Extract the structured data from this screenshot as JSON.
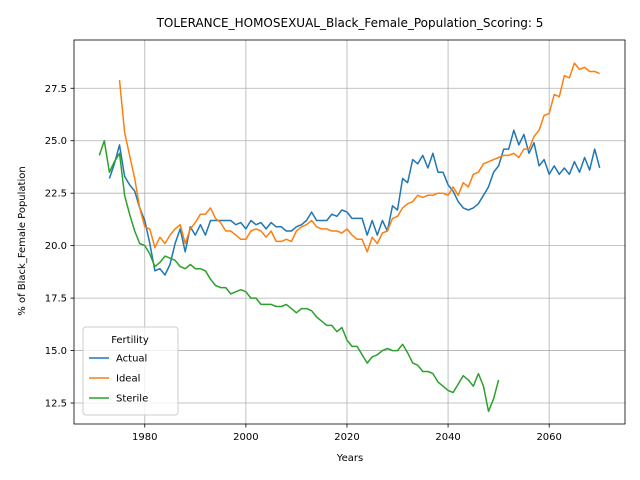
{
  "chart_data": {
    "type": "line",
    "title": "TOLERANCE_HOMOSEXUAL_Black_Female_Population_Scoring: 5",
    "xlabel": "Years",
    "ylabel": "% of Black_Female Population",
    "xlim": [
      1966,
      2075
    ],
    "ylim": [
      11.5,
      29.8
    ],
    "xticks": [
      1980,
      2000,
      2020,
      2040,
      2060
    ],
    "yticks": [
      12.5,
      15.0,
      17.5,
      20.0,
      22.5,
      25.0,
      27.5
    ],
    "grid": true,
    "legend": {
      "title": "Fertility",
      "placement": "lower-left"
    },
    "series": [
      {
        "name": "Actual",
        "color": "#1f77b4",
        "x": [
          1973,
          1974,
          1975,
          1976,
          1977,
          1978,
          1979,
          1980,
          1981,
          1982,
          1983,
          1984,
          1985,
          1986,
          1987,
          1988,
          1989,
          1990,
          1991,
          1992,
          1993,
          1994,
          1995,
          1996,
          1997,
          1998,
          1999,
          2000,
          2001,
          2002,
          2003,
          2004,
          2005,
          2006,
          2007,
          2008,
          2009,
          2010,
          2011,
          2012,
          2013,
          2014,
          2015,
          2016,
          2017,
          2018,
          2019,
          2020,
          2021,
          2022,
          2023,
          2024,
          2025,
          2026,
          2027,
          2028,
          2029,
          2030,
          2031,
          2032,
          2033,
          2034,
          2035,
          2036,
          2037,
          2038,
          2039,
          2040,
          2041,
          2042,
          2043,
          2044,
          2045,
          2046,
          2047,
          2048,
          2049,
          2050,
          2051,
          2052,
          2053,
          2054,
          2055,
          2056,
          2057,
          2058,
          2059,
          2060,
          2061,
          2062,
          2063,
          2064,
          2065,
          2066,
          2067,
          2068,
          2069,
          2070
        ],
        "values": [
          23.2,
          23.9,
          24.8,
          23.3,
          22.9,
          22.6,
          21.8,
          21.2,
          20.1,
          18.8,
          18.9,
          18.6,
          19.1,
          20.1,
          20.8,
          19.7,
          20.9,
          20.5,
          21.0,
          20.5,
          21.2,
          21.2,
          21.2,
          21.2,
          21.2,
          21.0,
          21.1,
          20.8,
          21.2,
          21.0,
          21.1,
          20.8,
          21.1,
          20.9,
          20.9,
          20.7,
          20.7,
          20.9,
          21.0,
          21.2,
          21.6,
          21.2,
          21.2,
          21.2,
          21.5,
          21.4,
          21.7,
          21.6,
          21.3,
          21.3,
          21.3,
          20.5,
          21.2,
          20.5,
          21.2,
          20.7,
          21.9,
          21.7,
          23.2,
          23.0,
          24.1,
          23.9,
          24.3,
          23.7,
          24.4,
          23.5,
          23.5,
          22.9,
          22.6,
          22.1,
          21.8,
          21.7,
          21.8,
          22.0,
          22.4,
          22.8,
          23.5,
          23.8,
          24.6,
          24.6,
          25.5,
          24.8,
          25.3,
          24.4,
          24.9,
          23.8,
          24.1,
          23.4,
          23.8,
          23.4,
          23.7,
          23.4,
          24.0,
          23.5,
          24.2,
          23.6,
          24.6,
          23.7
        ]
      },
      {
        "name": "Ideal",
        "color": "#ff7f0e",
        "x": [
          1975,
          1976,
          1977,
          1978,
          1979,
          1980,
          1981,
          1982,
          1983,
          1984,
          1985,
          1986,
          1987,
          1988,
          1989,
          1990,
          1991,
          1992,
          1993,
          1994,
          1995,
          1996,
          1997,
          1998,
          1999,
          2000,
          2001,
          2002,
          2003,
          2004,
          2005,
          2006,
          2007,
          2008,
          2009,
          2010,
          2011,
          2012,
          2013,
          2014,
          2015,
          2016,
          2017,
          2018,
          2019,
          2020,
          2021,
          2022,
          2023,
          2024,
          2025,
          2026,
          2027,
          2028,
          2029,
          2030,
          2031,
          2032,
          2033,
          2034,
          2035,
          2036,
          2037,
          2038,
          2039,
          2040,
          2041,
          2042,
          2043,
          2044,
          2045,
          2046,
          2047,
          2048,
          2049,
          2050,
          2051,
          2052,
          2053,
          2054,
          2055,
          2056,
          2057,
          2058,
          2059,
          2060,
          2061,
          2062,
          2063,
          2064,
          2065,
          2066,
          2067,
          2068,
          2069,
          2070
        ],
        "values": [
          27.9,
          25.4,
          24.3,
          23.2,
          21.8,
          20.9,
          20.8,
          19.9,
          20.4,
          20.1,
          20.5,
          20.8,
          21.0,
          20.1,
          20.8,
          21.1,
          21.5,
          21.5,
          21.8,
          21.3,
          21.1,
          20.7,
          20.7,
          20.5,
          20.3,
          20.3,
          20.7,
          20.8,
          20.7,
          20.4,
          20.7,
          20.2,
          20.2,
          20.3,
          20.2,
          20.7,
          20.9,
          21.0,
          21.2,
          20.9,
          20.8,
          20.8,
          20.7,
          20.7,
          20.6,
          20.8,
          20.5,
          20.3,
          20.3,
          19.7,
          20.4,
          20.1,
          20.6,
          20.7,
          21.3,
          21.4,
          21.8,
          22.0,
          22.1,
          22.4,
          22.3,
          22.4,
          22.4,
          22.5,
          22.5,
          22.4,
          22.8,
          22.4,
          23.0,
          22.8,
          23.4,
          23.5,
          23.9,
          24.0,
          24.1,
          24.2,
          24.3,
          24.3,
          24.4,
          24.2,
          24.6,
          24.6,
          25.2,
          25.5,
          26.2,
          26.3,
          27.2,
          27.1,
          28.1,
          28.0,
          28.7,
          28.4,
          28.5,
          28.3,
          28.3,
          28.2
        ]
      },
      {
        "name": "Sterile",
        "color": "#2ca02c",
        "x": [
          1971,
          1972,
          1973,
          1974,
          1975,
          1976,
          1977,
          1978,
          1979,
          1980,
          1981,
          1982,
          1983,
          1984,
          1985,
          1986,
          1987,
          1988,
          1989,
          1990,
          1991,
          1992,
          1993,
          1994,
          1995,
          1996,
          1997,
          1998,
          1999,
          2000,
          2001,
          2002,
          2003,
          2004,
          2005,
          2006,
          2007,
          2008,
          2009,
          2010,
          2011,
          2012,
          2013,
          2014,
          2015,
          2016,
          2017,
          2018,
          2019,
          2020,
          2021,
          2022,
          2023,
          2024,
          2025,
          2026,
          2027,
          2028,
          2029,
          2030,
          2031,
          2032,
          2033,
          2034,
          2035,
          2036,
          2037,
          2038,
          2039,
          2040,
          2041,
          2042,
          2043,
          2044,
          2045,
          2046,
          2047,
          2048,
          2049,
          2050
        ],
        "values": [
          24.3,
          25.0,
          23.5,
          24.0,
          24.4,
          22.4,
          21.5,
          20.7,
          20.1,
          20.0,
          19.6,
          19.0,
          19.2,
          19.5,
          19.4,
          19.3,
          19.0,
          18.9,
          19.1,
          18.9,
          18.9,
          18.8,
          18.4,
          18.1,
          18.0,
          18.0,
          17.7,
          17.8,
          17.9,
          17.8,
          17.5,
          17.5,
          17.2,
          17.2,
          17.2,
          17.1,
          17.1,
          17.2,
          17.0,
          16.8,
          17.0,
          17.0,
          16.9,
          16.6,
          16.4,
          16.2,
          16.2,
          15.9,
          16.1,
          15.5,
          15.2,
          15.2,
          14.8,
          14.4,
          14.7,
          14.8,
          15.0,
          15.1,
          15.0,
          15.0,
          15.3,
          14.9,
          14.4,
          14.3,
          14.0,
          14.0,
          13.9,
          13.5,
          13.3,
          13.1,
          13.0,
          13.4,
          13.8,
          13.6,
          13.3,
          13.9,
          13.3,
          12.1,
          12.7,
          13.6
        ]
      }
    ]
  }
}
